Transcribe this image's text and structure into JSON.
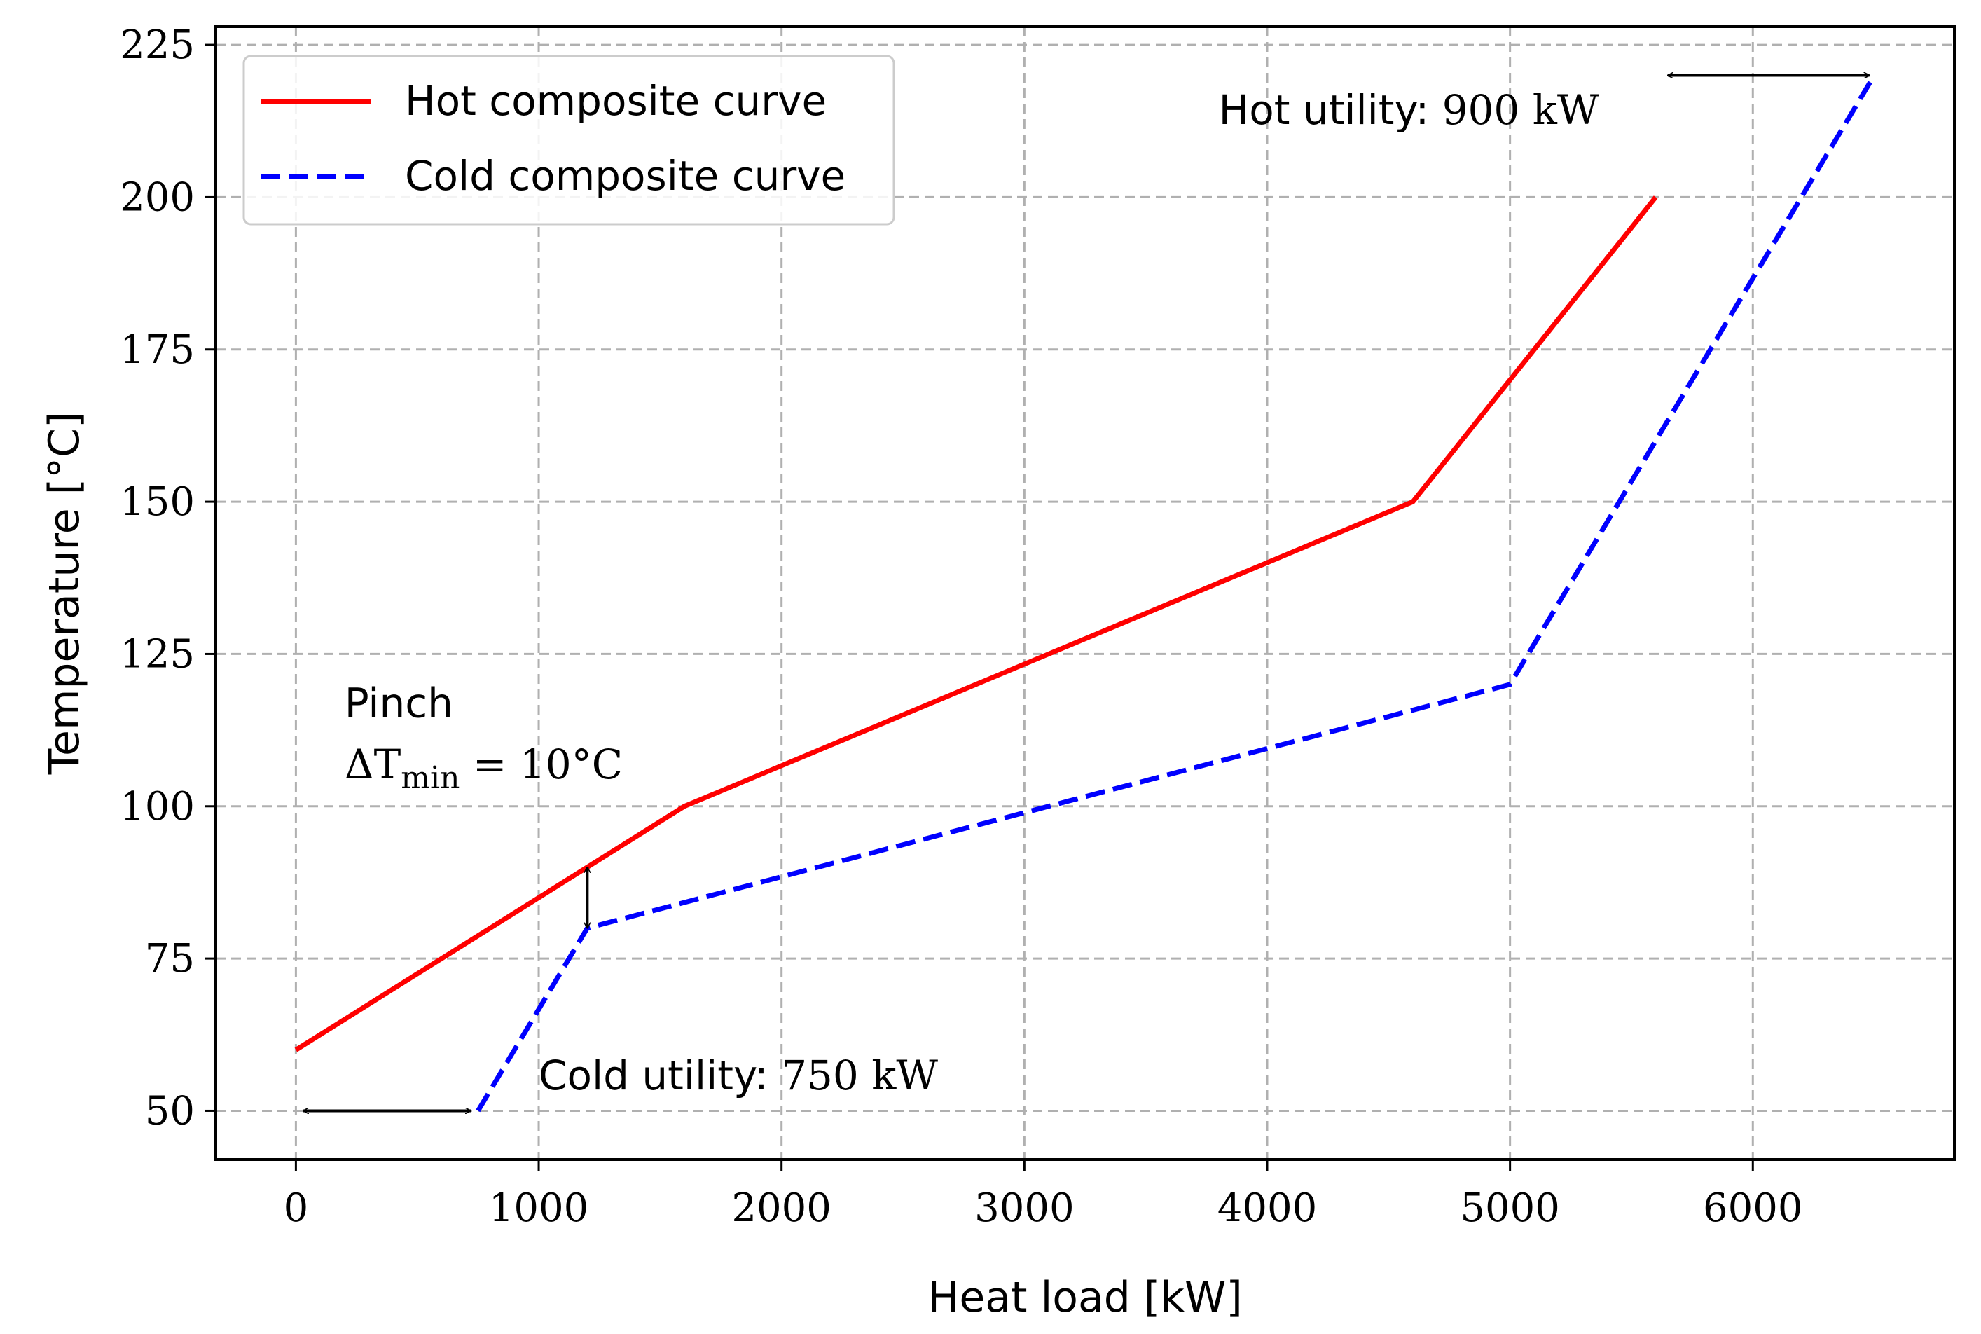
{
  "chart_data": {
    "type": "line",
    "title": "",
    "xlabel": "Heat load [kW]",
    "ylabel": "Temperature [°C]",
    "xlim": [
      -330,
      6830
    ],
    "ylim": [
      42,
      228
    ],
    "x_ticks": [
      0,
      1000,
      2000,
      3000,
      4000,
      5000,
      6000
    ],
    "y_ticks": [
      50,
      75,
      100,
      125,
      150,
      175,
      200,
      225
    ],
    "grid": true,
    "legend_position": "top-left",
    "series": [
      {
        "name": "Hot composite curve",
        "color": "#ff0000",
        "style": "solid",
        "x": [
          0,
          1600,
          4600,
          5600
        ],
        "y": [
          60,
          100,
          150,
          200
        ]
      },
      {
        "name": "Cold composite curve",
        "color": "#0000ff",
        "style": "dashed",
        "x": [
          750,
          1200,
          5000,
          6500
        ],
        "y": [
          50,
          80,
          120,
          220
        ]
      }
    ],
    "annotations": {
      "pinch_title": "Pinch",
      "pinch_label": "ΔT",
      "pinch_subscript": "min",
      "pinch_value": " = 10°C",
      "hot_utility_prefix": "Hot utility: ",
      "hot_utility_value": "900 kW",
      "cold_utility_prefix": "Cold utility: ",
      "cold_utility_value": "750 kW"
    },
    "arrows": [
      {
        "name": "hot-utility-arrow",
        "x1": 5650,
        "y1": 220,
        "x2": 6480,
        "y2": 220
      },
      {
        "name": "cold-utility-arrow",
        "x1": 30,
        "y1": 50,
        "x2": 720,
        "y2": 50
      },
      {
        "name": "pinch-arrow",
        "x1": 1200,
        "y1": 80,
        "x2": 1200,
        "y2": 90
      }
    ]
  }
}
